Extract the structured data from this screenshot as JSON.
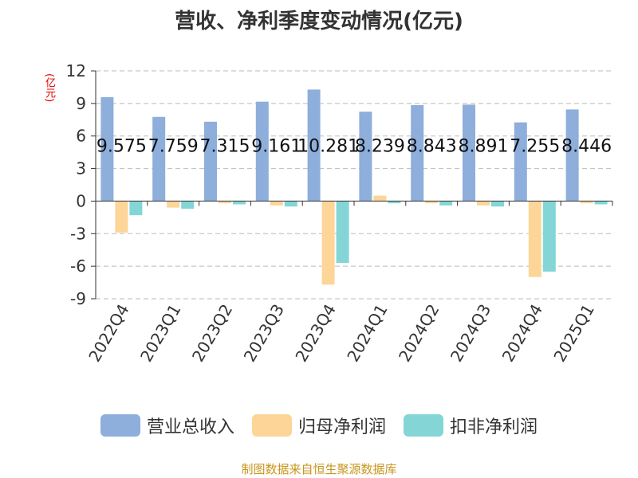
{
  "chart_data": {
    "type": "bar",
    "title": "营收、净利季度变动情况(亿元)",
    "ylabel": "(亿元)",
    "ylim": [
      -9,
      12
    ],
    "yticks": [
      12,
      9,
      6,
      3,
      0,
      -3,
      -6,
      -9
    ],
    "grid": true,
    "legend_position": "bottom",
    "categories": [
      "2022Q4",
      "2023Q1",
      "2023Q2",
      "2023Q3",
      "2023Q4",
      "2024Q1",
      "2024Q2",
      "2024Q3",
      "2024Q4",
      "2025Q1"
    ],
    "series": [
      {
        "name": "营业总收入",
        "color": "#8eaedb",
        "values": [
          9.575,
          7.759,
          7.315,
          9.161,
          10.281,
          8.239,
          8.843,
          8.891,
          7.255,
          8.446
        ],
        "labels": [
          "9.575",
          "7.759",
          "7.315",
          "9.161",
          "10.281",
          "8.239",
          "8.843",
          "8.891",
          "7.255",
          "8.446"
        ]
      },
      {
        "name": "归母净利润",
        "color": "#fdd598",
        "values": [
          -2.9,
          -0.6,
          -0.2,
          -0.4,
          -7.7,
          0.5,
          -0.2,
          -0.4,
          -7.0,
          -0.2
        ]
      },
      {
        "name": "扣非净利润",
        "color": "#84d6d6",
        "values": [
          -1.3,
          -0.7,
          -0.3,
          -0.5,
          -5.7,
          -0.2,
          -0.4,
          -0.5,
          -6.5,
          -0.3
        ]
      }
    ]
  },
  "source": "制图数据来自恒生聚源数据库"
}
